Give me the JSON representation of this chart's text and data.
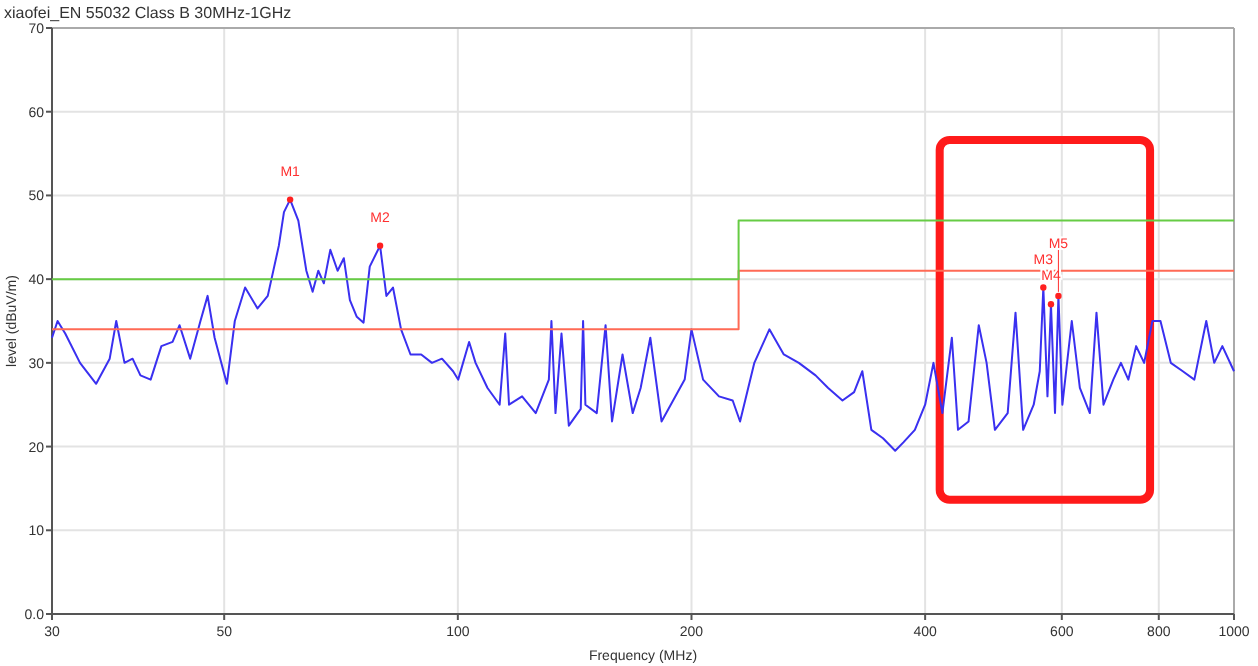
{
  "chart_data": {
    "type": "line",
    "title": "xiaofei_EN 55032 Class B 30MHz-1GHz",
    "xlabel": "Frequency (MHz)",
    "ylabel": "level (dBuV/m)",
    "log": "x",
    "grid": true,
    "marker": "none",
    "line_style": "solid",
    "xlim": [
      30,
      1000
    ],
    "xticks": [
      30,
      50,
      100,
      200,
      400,
      600,
      800,
      1000
    ],
    "ylim": [
      0,
      70
    ],
    "yticks": [
      {
        "value": 0,
        "label": "0.0"
      },
      10,
      20,
      30,
      40,
      50,
      60,
      70
    ],
    "series": [
      {
        "color": "#3a30f0",
        "x": [
          30,
          30.5,
          31.2,
          32.6,
          34.2,
          35.6,
          36.3,
          37.2,
          38.1,
          39.0,
          40.2,
          41.5,
          42.9,
          43.8,
          45.2,
          46.6,
          47.6,
          48.6,
          50.4,
          51.6,
          53.2,
          55.2,
          56.9,
          58.8,
          59.7,
          60.8,
          62.3,
          63.8,
          65.0,
          66.1,
          67.2,
          68.5,
          70.0,
          71.3,
          72.6,
          74.1,
          75.6,
          77.0,
          79.4,
          80.9,
          82.5,
          84.5,
          86.9,
          89.7,
          92.6,
          95.4,
          98.6,
          100.1,
          103.4,
          105.4,
          109.2,
          113.2,
          115.1,
          116.4,
          121,
          126,
          131,
          132,
          133.6,
          136,
          139,
          144,
          145,
          146,
          151,
          155,
          158,
          163,
          168,
          172,
          177,
          183,
          196,
          200,
          207,
          217,
          226,
          231,
          241,
          252,
          263,
          275,
          289,
          300,
          313,
          324,
          332,
          341,
          353,
          366,
          375,
          388,
          400,
          410,
          421,
          433,
          441,
          455,
          469,
          480,
          492,
          511,
          523,
          535,
          552,
          562,
          568,
          575,
          581,
          588,
          594,
          601,
          618,
          633,
          652,
          665,
          679,
          699,
          715,
          731,
          748,
          766,
          785,
          804,
          829,
          859,
          889,
          921,
          943,
          966,
          1000
        ],
        "values": [
          33,
          35,
          33.5,
          30,
          27.5,
          30.5,
          35,
          30,
          30.5,
          28.5,
          28,
          32,
          32.5,
          34.5,
          30.5,
          35,
          38,
          33,
          27.5,
          35,
          39,
          36.5,
          38,
          44,
          48,
          49.5,
          47,
          41,
          38.5,
          41,
          39.5,
          43.5,
          41,
          42.5,
          37.5,
          35.5,
          34.8,
          41.5,
          44,
          38,
          39,
          34,
          31,
          31,
          30,
          30.5,
          29,
          28,
          32.5,
          30,
          27,
          25,
          33.5,
          25,
          26,
          24,
          28,
          35,
          24,
          33.5,
          22.5,
          24.5,
          35,
          25,
          24,
          34.5,
          23,
          31,
          24,
          27,
          33,
          23,
          28,
          34,
          28,
          26,
          25.5,
          23,
          30,
          34,
          31,
          30,
          28.5,
          27,
          25.5,
          26.5,
          29,
          22,
          21,
          19.5,
          20.5,
          22,
          25,
          30,
          24,
          33,
          22,
          23,
          34.5,
          30,
          22,
          24,
          36,
          22,
          25,
          29,
          39,
          26,
          37,
          24,
          38,
          25,
          35,
          27,
          24,
          36,
          25,
          28,
          30,
          28,
          32,
          30,
          35,
          35,
          30,
          29,
          28,
          35,
          30,
          32,
          29
        ]
      },
      {
        "color": "#ff6a55",
        "x": [
          30,
          230,
          230,
          1000
        ],
        "values": [
          34,
          34,
          41,
          41
        ]
      },
      {
        "color": "#66cc44",
        "x": [
          30,
          230,
          230,
          1000
        ],
        "values": [
          40,
          40,
          47,
          47
        ]
      }
    ],
    "annotations": [
      {
        "text": "M1",
        "x": 60.8,
        "y": 49.5
      },
      {
        "text": "M2",
        "x": 79.4,
        "y": 44
      },
      {
        "text": "M3",
        "x": 568,
        "y": 39
      },
      {
        "text": "M4",
        "x": 581,
        "y": 37
      },
      {
        "text": "M5",
        "x": 594,
        "y": 38
      }
    ]
  }
}
